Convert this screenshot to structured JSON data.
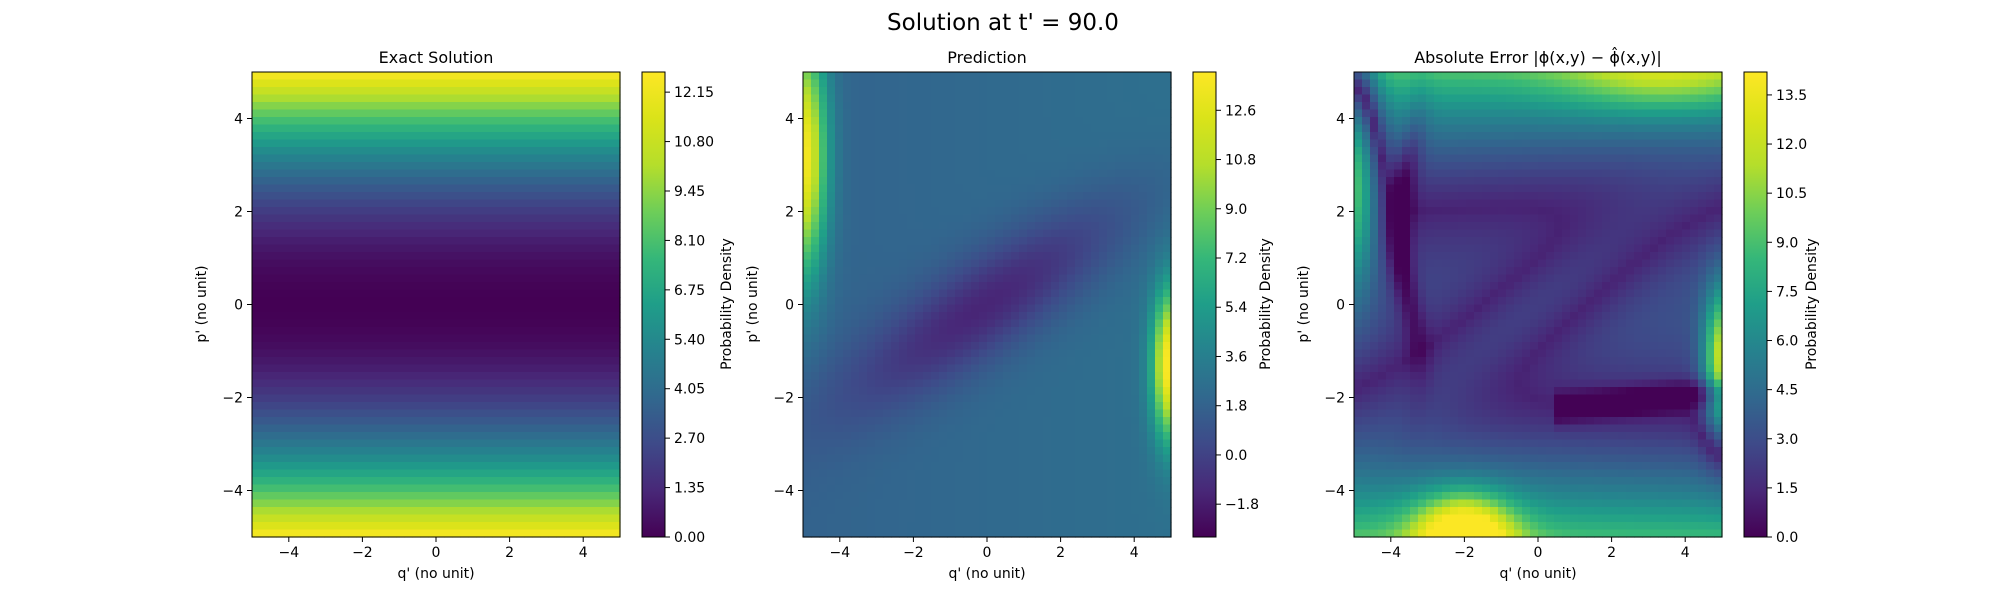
{
  "suptitle": "Solution at t' = 90.0",
  "chart_data": [
    {
      "type": "heatmap",
      "title": "Exact Solution",
      "xlabel": "q' (no unit)",
      "ylabel": "p' (no unit)",
      "xlim": [
        -5,
        5
      ],
      "ylim": [
        -5,
        5
      ],
      "xticks": [
        "−4",
        "−2",
        "0",
        "2",
        "4"
      ],
      "yticks": [
        "−4",
        "−2",
        "0",
        "2",
        "4"
      ],
      "colorbar": {
        "label": "Probability Density",
        "range": [
          0.0,
          12.7
        ],
        "ticks": [
          0.0,
          1.35,
          2.7,
          4.05,
          5.4,
          6.75,
          8.1,
          9.45,
          10.8,
          12.15
        ],
        "tick_labels": [
          "0.00",
          "1.35",
          "2.70",
          "4.05",
          "5.40",
          "6.75",
          "8.10",
          "9.45",
          "10.80",
          "12.15"
        ]
      },
      "colormap": "viridis",
      "field": "density varies with p' only: about 0.0 at p'=0, about 6.8 at |p'|=3.6, about 12.7 at |p'|=5"
    },
    {
      "type": "heatmap",
      "title": "Prediction",
      "xlabel": "q' (no unit)",
      "ylabel": "p' (no unit)",
      "xlim": [
        -5,
        5
      ],
      "ylim": [
        -5,
        5
      ],
      "xticks": [
        "−4",
        "−2",
        "0",
        "2",
        "4"
      ],
      "yticks": [
        "−4",
        "−2",
        "0",
        "2",
        "4"
      ],
      "colorbar": {
        "label": "Probability Density",
        "range": [
          -3.0,
          14.0
        ],
        "ticks": [
          -1.8,
          0.0,
          1.8,
          3.6,
          5.4,
          7.2,
          9.0,
          10.8,
          12.6
        ],
        "tick_labels": [
          "−1.8",
          "0.0",
          "1.8",
          "3.6",
          "5.4",
          "7.2",
          "9.0",
          "10.8",
          "12.6"
        ]
      },
      "colormap": "viridis",
      "field": "mostly 0 to 3 over the domain; maxima about 13 to 14 at the top-left corner (q' near -4.8, p' from 1 to 5) and at the right edge (q' near 4.8, p' from -2.5 to 0); a minimum of about -1.5 along a band from (-3, -2) to (3, 2)"
    },
    {
      "type": "heatmap",
      "title": "Absolute Error |ϕ(x,y) − ϕ̂(x,y)|",
      "xlabel": "q' (no unit)",
      "ylabel": "p' (no unit)",
      "xlim": [
        -5,
        5
      ],
      "ylim": [
        -5,
        5
      ],
      "xticks": [
        "−4",
        "−2",
        "0",
        "2",
        "4"
      ],
      "yticks": [
        "−4",
        "−2",
        "0",
        "2",
        "4"
      ],
      "colorbar": {
        "label": "Probability Density",
        "range": [
          0.0,
          14.2
        ],
        "ticks": [
          0.0,
          1.5,
          3.0,
          4.5,
          6.0,
          7.5,
          9.0,
          10.5,
          12.0,
          13.5
        ],
        "tick_labels": [
          "0.0",
          "1.5",
          "3.0",
          "4.5",
          "6.0",
          "7.5",
          "9.0",
          "10.5",
          "12.0",
          "13.5"
        ]
      },
      "colormap": "viridis",
      "field": "about 8 to 11 along the top edge; about 13 near (-2, -4.8), about 13.5 at the right edge near (4.8, -1.5), about 10 at the left edge near (-4.8, 2); about 0 along a curve through (-4, 3), (-3.3, 0.5), (-4.5, -0.5) and along a curve from (1, -2) to (4.8, -2.5); about 2 to 4 elsewhere"
    }
  ]
}
